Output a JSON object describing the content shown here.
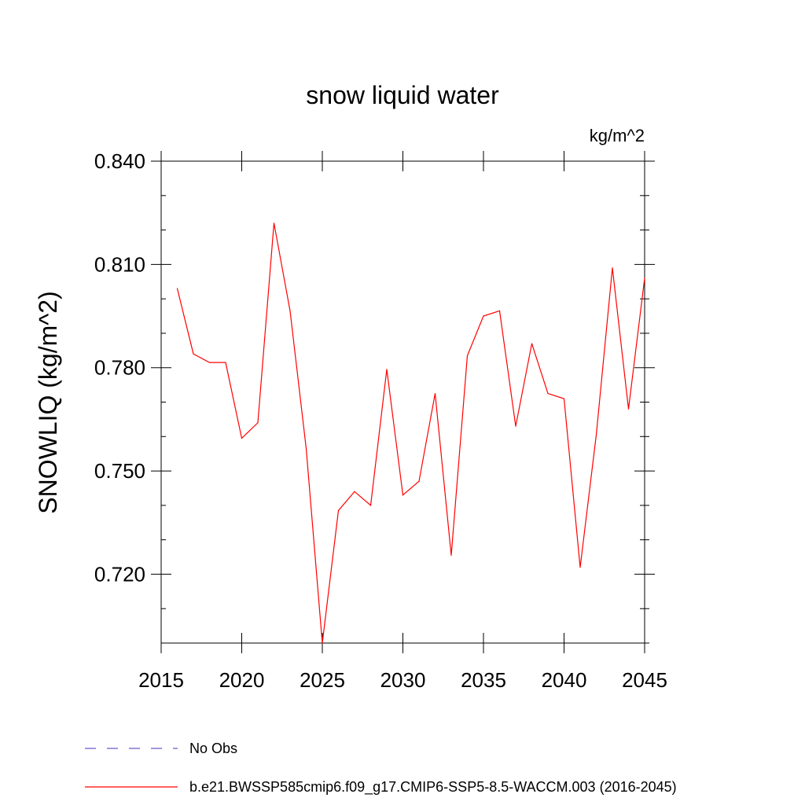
{
  "chart_data": {
    "type": "line",
    "title": "snow liquid water",
    "units_label": "kg/m^2",
    "xlabel": "",
    "ylabel": "SNOWLIQ  (kg/m^2)",
    "xlim": [
      2015,
      2045
    ],
    "ylim": [
      0.7,
      0.84
    ],
    "x_ticks": [
      2015,
      2020,
      2025,
      2030,
      2035,
      2040,
      2045
    ],
    "x_tick_labels": [
      "2015",
      "2020",
      "2025",
      "2030",
      "2035",
      "2040",
      "2045"
    ],
    "y_ticks": [
      0.72,
      0.75,
      0.78,
      0.81,
      0.84
    ],
    "y_tick_labels": [
      "0.720",
      "0.750",
      "0.780",
      "0.810",
      "0.840"
    ],
    "y_minor_step": 0.01,
    "x_minor_step": 1,
    "grid": false,
    "legend_position": "bottom-left",
    "series": [
      {
        "name": "b.e21.BWSSP585cmip6.f09_g17.CMIP6-SSP5-8.5-WACCM.003 (2016-2045)",
        "color": "#ff0000",
        "dash": "solid",
        "x": [
          2016,
          2017,
          2018,
          2019,
          2020,
          2021,
          2022,
          2023,
          2024,
          2025,
          2026,
          2027,
          2028,
          2029,
          2030,
          2031,
          2032,
          2033,
          2034,
          2035,
          2036,
          2037,
          2038,
          2039,
          2040,
          2041,
          2042,
          2043,
          2044,
          2045
        ],
        "values": [
          0.803,
          0.784,
          0.7815,
          0.7815,
          0.7595,
          0.764,
          0.822,
          0.7965,
          0.7565,
          0.7,
          0.7385,
          0.744,
          0.74,
          0.7795,
          0.743,
          0.747,
          0.7725,
          0.7255,
          0.7835,
          0.795,
          0.7965,
          0.763,
          0.787,
          0.7725,
          0.771,
          0.722,
          0.7605,
          0.809,
          0.768,
          0.806
        ]
      },
      {
        "name": "No Obs",
        "color": "#6a5acd",
        "dash": "dashed",
        "x": [],
        "values": []
      }
    ]
  }
}
